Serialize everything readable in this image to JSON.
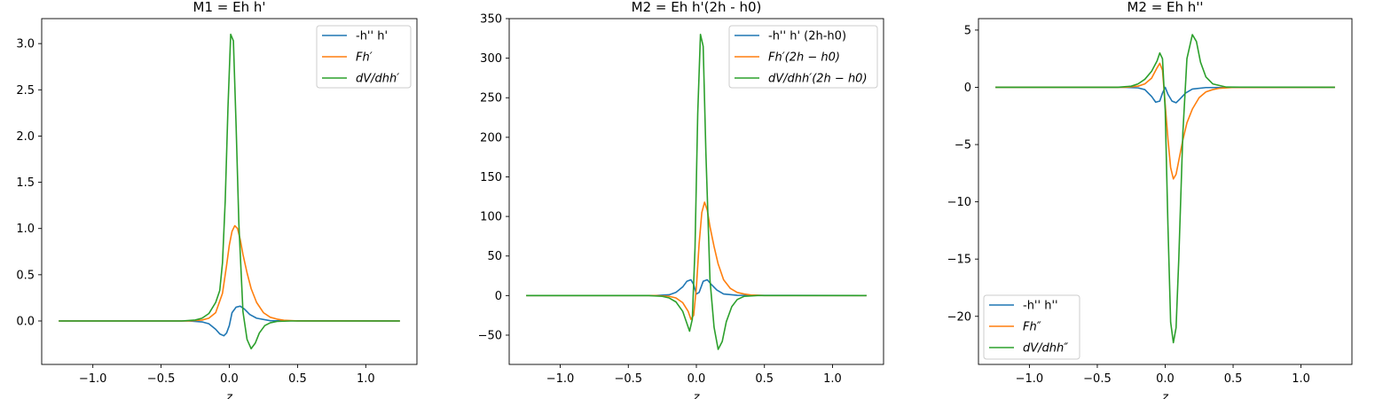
{
  "colors": {
    "blue": "#1f77b4",
    "orange": "#ff7f0e",
    "green": "#2ca02c"
  },
  "chart_data": [
    {
      "type": "line",
      "title": "M1 = Eh h'",
      "xlabel": "z",
      "ylabel": "",
      "xlim": [
        -1.375,
        1.375
      ],
      "ylim": [
        -0.47,
        3.27
      ],
      "xticks": [
        -1.0,
        -0.5,
        0.0,
        0.5,
        1.0
      ],
      "xtick_labels": [
        "−1.0",
        "−0.5",
        "0.0",
        "0.5",
        "1.0"
      ],
      "yticks": [
        0.0,
        0.5,
        1.0,
        1.5,
        2.0,
        2.5,
        3.0
      ],
      "ytick_labels": [
        "0.0",
        "0.5",
        "1.0",
        "1.5",
        "2.0",
        "2.5",
        "3.0"
      ],
      "legend_position": "upper right",
      "series": [
        {
          "name": "-h'' h'",
          "color": "blue",
          "math": false,
          "x": [
            -1.25,
            -0.3,
            -0.2,
            -0.15,
            -0.1,
            -0.07,
            -0.04,
            -0.02,
            0.0,
            0.02,
            0.05,
            0.08,
            0.11,
            0.15,
            0.2,
            0.3,
            1.25
          ],
          "y": [
            0,
            0,
            -0.01,
            -0.03,
            -0.09,
            -0.14,
            -0.16,
            -0.13,
            -0.05,
            0.09,
            0.15,
            0.16,
            0.13,
            0.07,
            0.03,
            0.003,
            0
          ]
        },
        {
          "name": "Fh′",
          "color": "orange",
          "math": true,
          "x": [
            -1.25,
            -0.3,
            -0.2,
            -0.15,
            -0.1,
            -0.05,
            -0.02,
            0.0,
            0.02,
            0.04,
            0.06,
            0.08,
            0.1,
            0.13,
            0.16,
            0.2,
            0.25,
            0.3,
            0.35,
            0.4,
            0.5,
            1.25
          ],
          "y": [
            0,
            0,
            0.01,
            0.03,
            0.09,
            0.3,
            0.6,
            0.82,
            0.97,
            1.03,
            1.0,
            0.88,
            0.72,
            0.52,
            0.35,
            0.2,
            0.09,
            0.04,
            0.02,
            0.008,
            0.001,
            0
          ]
        },
        {
          "name": "dV/dhh′",
          "color": "green",
          "math": true,
          "x": [
            -1.25,
            -0.35,
            -0.25,
            -0.2,
            -0.15,
            -0.1,
            -0.07,
            -0.05,
            -0.03,
            -0.01,
            0.01,
            0.03,
            0.05,
            0.07,
            0.1,
            0.13,
            0.16,
            0.19,
            0.22,
            0.26,
            0.3,
            0.35,
            0.45,
            1.25
          ],
          "y": [
            0,
            0,
            0.01,
            0.03,
            0.08,
            0.2,
            0.33,
            0.63,
            1.3,
            2.3,
            3.1,
            3.03,
            2.1,
            1.05,
            0.1,
            -0.2,
            -0.3,
            -0.24,
            -0.13,
            -0.05,
            -0.02,
            -0.005,
            0,
            0
          ]
        }
      ]
    },
    {
      "type": "line",
      "title": "M2 = Eh h'(2h - h0)",
      "xlabel": "z",
      "ylabel": "",
      "xlim": [
        -1.375,
        1.375
      ],
      "ylim": [
        -87,
        350
      ],
      "xticks": [
        -1.0,
        -0.5,
        0.0,
        0.5,
        1.0
      ],
      "xtick_labels": [
        "−1.0",
        "−0.5",
        "0.0",
        "0.5",
        "1.0"
      ],
      "yticks": [
        -50,
        0,
        50,
        100,
        150,
        200,
        250,
        300,
        350
      ],
      "ytick_labels": [
        "−50",
        "0",
        "50",
        "100",
        "150",
        "200",
        "250",
        "300",
        "350"
      ],
      "legend_position": "upper right",
      "series": [
        {
          "name": "-h'' h' (2h-h0)",
          "color": "blue",
          "math": false,
          "x": [
            -1.25,
            -0.3,
            -0.2,
            -0.15,
            -0.1,
            -0.07,
            -0.04,
            -0.02,
            0.0,
            0.02,
            0.05,
            0.08,
            0.11,
            0.15,
            0.2,
            0.3,
            1.25
          ],
          "y": [
            0,
            0,
            1,
            4,
            11,
            18,
            20,
            14,
            2,
            4,
            18,
            20,
            14,
            7,
            2,
            0.3,
            0
          ]
        },
        {
          "name": "Fh′(2h − h0)",
          "color": "orange",
          "math": true,
          "x": [
            -1.25,
            -0.3,
            -0.2,
            -0.15,
            -0.1,
            -0.06,
            -0.04,
            -0.02,
            0.0,
            0.02,
            0.04,
            0.06,
            0.08,
            0.1,
            0.13,
            0.16,
            0.2,
            0.25,
            0.3,
            0.35,
            0.4,
            0.5,
            1.25
          ],
          "y": [
            0,
            0,
            -1,
            -3,
            -9,
            -20,
            -30,
            -25,
            10,
            65,
            105,
            118,
            108,
            87,
            62,
            40,
            20,
            9,
            4,
            2,
            0.8,
            0.1,
            0
          ]
        },
        {
          "name": "dV/dhh′(2h − h0)",
          "color": "green",
          "math": true,
          "x": [
            -1.25,
            -0.35,
            -0.25,
            -0.2,
            -0.15,
            -0.1,
            -0.05,
            -0.03,
            -0.01,
            0.01,
            0.03,
            0.05,
            0.07,
            0.1,
            0.13,
            0.16,
            0.19,
            0.22,
            0.26,
            0.3,
            0.35,
            0.45,
            1.25
          ],
          "y": [
            0,
            0,
            -1,
            -3,
            -8,
            -20,
            -45,
            -30,
            60,
            230,
            330,
            315,
            180,
            20,
            -40,
            -68,
            -58,
            -33,
            -14,
            -5,
            -1,
            0,
            0
          ]
        }
      ]
    },
    {
      "type": "line",
      "title": "M2 = Eh h''",
      "xlabel": "z",
      "ylabel": "",
      "xlim": [
        -1.375,
        1.375
      ],
      "ylim": [
        -24.2,
        6.0
      ],
      "xticks": [
        -1.0,
        -0.5,
        0.0,
        0.5,
        1.0
      ],
      "xtick_labels": [
        "−1.0",
        "−0.5",
        "0.0",
        "0.5",
        "1.0"
      ],
      "yticks": [
        -20,
        -15,
        -10,
        -5,
        0,
        5
      ],
      "ytick_labels": [
        "−20",
        "−15",
        "−10",
        "−5",
        "0",
        "5"
      ],
      "legend_position": "lower left",
      "series": [
        {
          "name": "-h'' h''",
          "color": "blue",
          "math": false,
          "x": [
            -1.25,
            -0.3,
            -0.2,
            -0.15,
            -0.1,
            -0.07,
            -0.04,
            -0.02,
            0.0,
            0.02,
            0.05,
            0.08,
            0.11,
            0.15,
            0.2,
            0.3,
            1.25
          ],
          "y": [
            0,
            0,
            -0.05,
            -0.2,
            -0.8,
            -1.3,
            -1.2,
            -0.5,
            0.0,
            -0.6,
            -1.2,
            -1.35,
            -1.0,
            -0.5,
            -0.15,
            -0.02,
            0
          ]
        },
        {
          "name": "Fh″",
          "color": "orange",
          "math": true,
          "x": [
            -1.25,
            -0.3,
            -0.2,
            -0.15,
            -0.1,
            -0.06,
            -0.04,
            -0.02,
            0.0,
            0.02,
            0.04,
            0.06,
            0.08,
            0.1,
            0.13,
            0.16,
            0.2,
            0.25,
            0.3,
            0.35,
            0.4,
            0.5,
            1.25
          ],
          "y": [
            0,
            0,
            0.1,
            0.3,
            0.8,
            1.7,
            2.1,
            1.5,
            -1.5,
            -4.5,
            -7.0,
            -8.0,
            -7.6,
            -6.4,
            -4.6,
            -3.1,
            -1.9,
            -0.9,
            -0.4,
            -0.2,
            -0.08,
            -0.01,
            0
          ]
        },
        {
          "name": "dV/dhh″",
          "color": "green",
          "math": true,
          "x": [
            -1.25,
            -0.35,
            -0.25,
            -0.2,
            -0.15,
            -0.1,
            -0.06,
            -0.04,
            -0.02,
            0.0,
            0.02,
            0.04,
            0.06,
            0.08,
            0.1,
            0.13,
            0.16,
            0.2,
            0.23,
            0.26,
            0.3,
            0.35,
            0.45,
            1.25
          ],
          "y": [
            0,
            0,
            0.1,
            0.3,
            0.7,
            1.4,
            2.3,
            3.0,
            2.5,
            -2.0,
            -12.0,
            -20.5,
            -22.3,
            -21.0,
            -15.0,
            -4.0,
            2.5,
            4.6,
            4.0,
            2.2,
            0.9,
            0.3,
            0.02,
            0
          ]
        }
      ]
    }
  ]
}
